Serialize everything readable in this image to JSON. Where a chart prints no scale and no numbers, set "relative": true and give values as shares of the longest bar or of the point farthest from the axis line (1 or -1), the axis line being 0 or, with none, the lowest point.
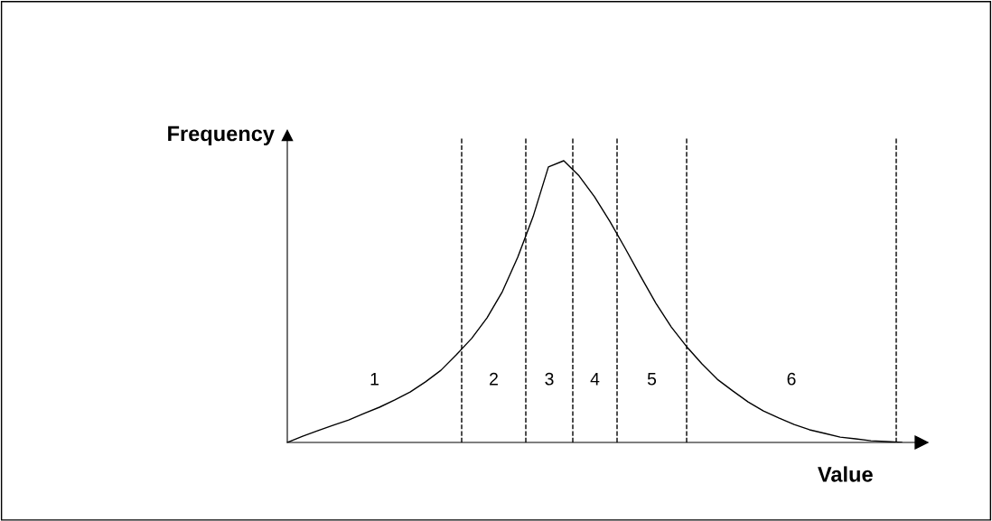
{
  "chart_data": {
    "type": "line",
    "relative": true,
    "xlabel": "Value",
    "ylabel": "Frequency",
    "color": "#000000",
    "line_style": "solid",
    "marker": "none",
    "categories": [
      null,
      null,
      null,
      null,
      null,
      null,
      null,
      null,
      null,
      null,
      null,
      null,
      null,
      null,
      null,
      null,
      null,
      null,
      null,
      null,
      null,
      null,
      null,
      null,
      null,
      null,
      null,
      null,
      null,
      null,
      null,
      null,
      null,
      null,
      null,
      null,
      null,
      null,
      null,
      null,
      null
    ],
    "values": [
      0,
      0.022,
      0.042,
      0.061,
      0.08,
      0.103,
      0.125,
      0.151,
      0.179,
      0.215,
      0.256,
      0.311,
      0.369,
      0.442,
      0.535,
      0.657,
      0.801,
      0.978,
      1,
      0.946,
      0.872,
      0.785,
      0.689,
      0.59,
      0.494,
      0.41,
      0.34,
      0.279,
      0.224,
      0.183,
      0.144,
      0.112,
      0.087,
      0.064,
      0.045,
      0.032,
      0.019,
      0.013,
      0.006,
      0.003,
      0
    ],
    "annotations": [
      "1",
      "2",
      "3",
      "4",
      "5",
      "6"
    ]
  }
}
